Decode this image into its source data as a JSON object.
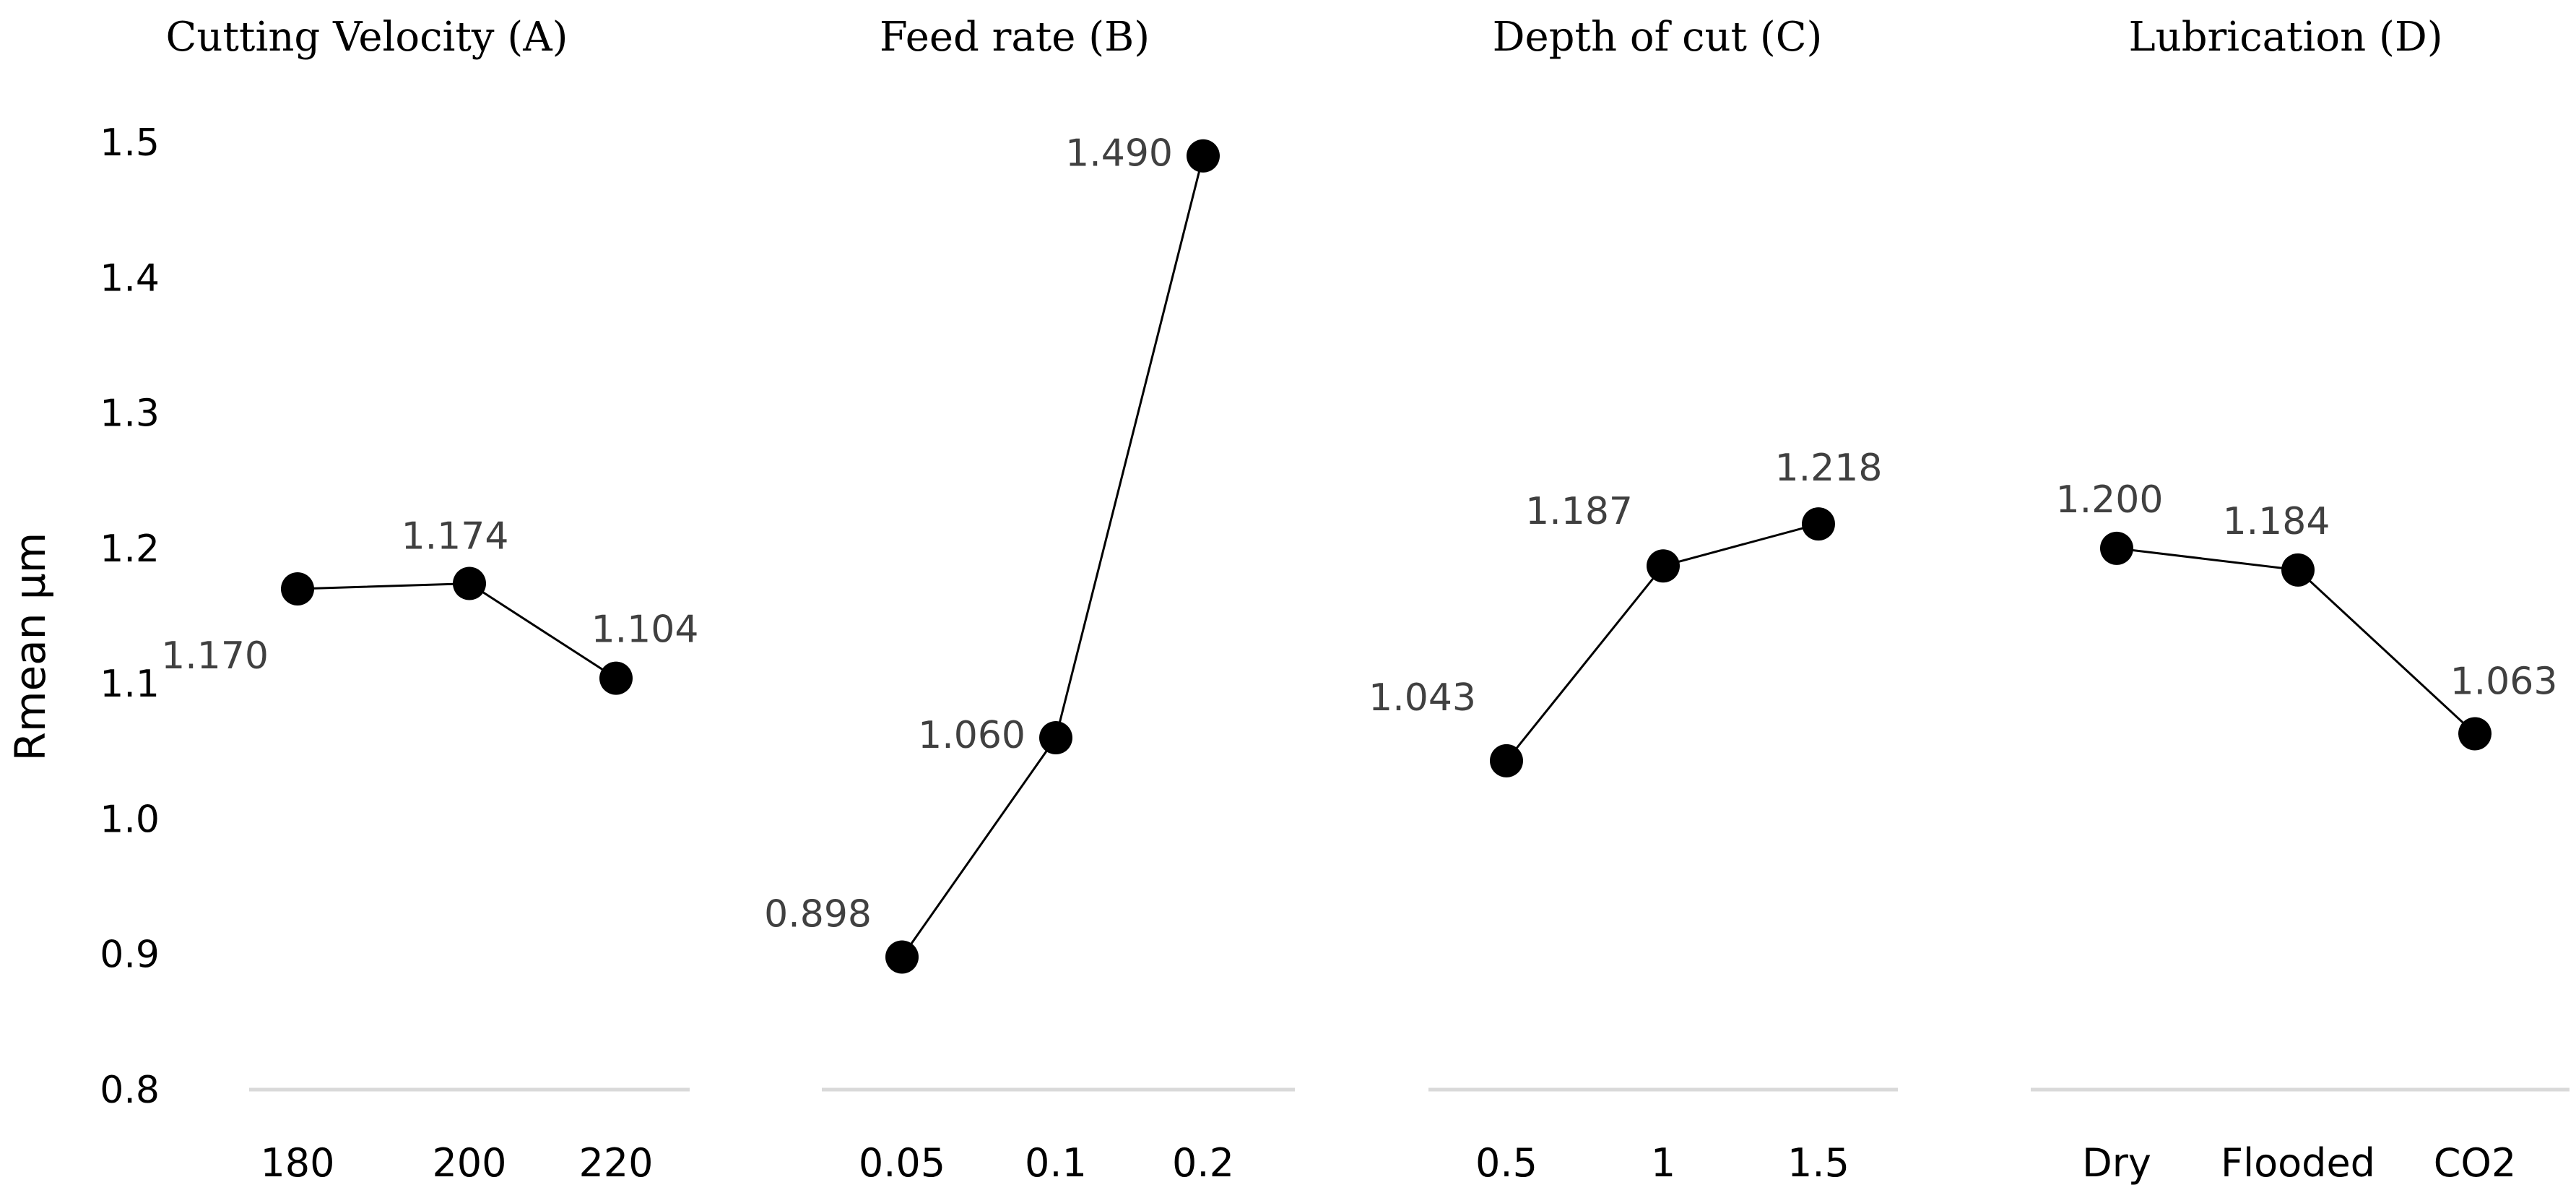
{
  "chart_data": {
    "type": "line",
    "ylabel": "Rmean µm",
    "ylim": [
      0.8,
      1.5
    ],
    "yticks": [
      "0.8",
      "0.9",
      "1.0",
      "1.1",
      "1.2",
      "1.3",
      "1.4",
      "1.5"
    ],
    "panels": [
      {
        "title": "Cutting Velocity (A)",
        "categories": [
          "180",
          "200",
          "220"
        ],
        "values": [
          1.17,
          1.174,
          1.104
        ],
        "labels": [
          "1.170",
          "1.174",
          "1.104"
        ]
      },
      {
        "title": "Feed rate (B)",
        "categories": [
          "0.05",
          "0.1",
          "0.2"
        ],
        "values": [
          0.898,
          1.06,
          1.49
        ],
        "labels": [
          "0.898",
          "1.060",
          "1.490"
        ]
      },
      {
        "title": "Depth of cut (C)",
        "categories": [
          "0.5",
          "1",
          "1.5"
        ],
        "values": [
          1.043,
          1.187,
          1.218
        ],
        "labels": [
          "1.043",
          "1.187",
          "1.218"
        ]
      },
      {
        "title": "Lubrication (D)",
        "categories": [
          "Dry",
          "Flooded",
          "CO2"
        ],
        "values": [
          1.2,
          1.184,
          1.063
        ],
        "labels": [
          "1.200",
          "1.184",
          "1.063"
        ]
      }
    ]
  }
}
